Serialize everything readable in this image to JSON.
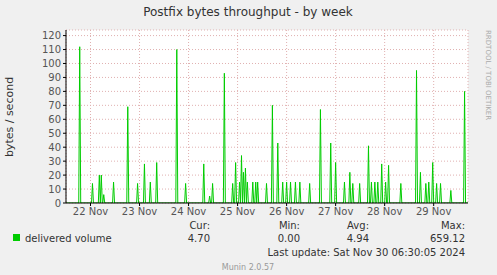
{
  "chart_data": {
    "type": "line",
    "title": "Postfix bytes throughput - by week",
    "y_label": "bytes / second",
    "x": [
      22.0,
      22.26,
      22.28,
      22.3,
      22.52,
      22.54,
      22.56,
      22.66,
      22.68,
      22.7,
      22.72,
      22.74,
      22.75,
      22.77,
      22.79,
      22.95,
      22.97,
      22.99,
      23.24,
      23.26,
      23.28,
      23.44,
      23.46,
      23.48,
      23.58,
      23.6,
      23.62,
      23.7,
      23.72,
      23.74,
      23.83,
      23.85,
      23.87,
      24.24,
      24.26,
      24.28,
      24.42,
      24.44,
      24.46,
      24.79,
      24.81,
      24.83,
      24.91,
      24.93,
      24.95,
      24.97,
      24.99,
      25.01,
      25.21,
      25.23,
      25.25,
      25.38,
      25.4,
      25.42,
      25.44,
      25.46,
      25.48,
      25.52,
      25.54,
      25.56,
      25.58,
      25.6,
      25.62,
      25.64,
      25.66,
      25.68,
      25.7,
      25.72,
      25.79,
      25.81,
      25.83,
      25.85,
      25.87,
      25.89,
      25.91,
      25.93,
      26.07,
      26.09,
      26.11,
      26.19,
      26.21,
      26.23,
      26.3,
      26.32,
      26.34,
      26.4,
      26.42,
      26.44,
      26.48,
      26.5,
      26.52,
      26.56,
      26.58,
      26.6,
      26.66,
      26.68,
      26.7,
      26.75,
      26.77,
      26.79,
      26.95,
      26.97,
      26.99,
      27.17,
      27.19,
      27.21,
      27.38,
      27.4,
      27.42,
      27.48,
      27.5,
      27.52,
      27.66,
      27.68,
      27.7,
      27.77,
      27.79,
      27.81,
      27.83,
      27.85,
      27.87,
      27.97,
      27.99,
      28.01,
      28.15,
      28.17,
      28.19,
      28.21,
      28.23,
      28.25,
      28.28,
      28.3,
      28.32,
      28.34,
      28.36,
      28.38,
      28.42,
      28.44,
      28.46,
      28.5,
      28.52,
      28.54,
      28.56,
      28.58,
      28.6,
      28.81,
      28.83,
      28.85,
      29.13,
      29.15,
      29.17,
      29.21,
      29.23,
      29.25,
      29.32,
      29.34,
      29.36,
      29.38,
      29.4,
      29.42,
      29.46,
      29.48,
      29.5,
      29.54,
      29.56,
      29.58,
      29.62,
      29.64,
      29.66,
      29.83,
      29.85,
      29.87,
      30.11,
      30.13,
      30.15,
      30.2
    ],
    "series": [
      {
        "name": "delivered volume",
        "color": "#00cc00",
        "values": [
          0,
          0,
          112,
          0,
          0,
          14,
          0,
          0,
          20,
          0,
          20,
          0,
          0,
          6,
          0,
          0,
          15,
          0,
          0,
          69,
          0,
          0,
          14,
          0,
          0,
          28,
          0,
          0,
          15,
          0,
          0,
          29,
          0,
          0,
          110,
          0,
          0,
          14,
          0,
          0,
          28,
          0,
          0,
          5,
          0,
          0,
          14,
          0,
          0,
          93,
          0,
          0,
          14,
          0,
          0,
          29,
          0,
          0,
          15,
          0,
          34,
          0,
          22,
          0,
          25,
          0,
          15,
          0,
          0,
          15,
          0,
          0,
          15,
          0,
          15,
          0,
          0,
          14,
          0,
          0,
          70,
          0,
          0,
          43,
          0,
          0,
          15,
          0,
          0,
          15,
          0,
          0,
          15,
          0,
          0,
          15,
          0,
          0,
          15,
          0,
          0,
          14,
          0,
          0,
          67,
          0,
          0,
          43,
          0,
          0,
          29,
          0,
          0,
          15,
          0,
          0,
          22,
          0,
          0,
          14,
          0,
          0,
          14,
          0,
          0,
          41,
          0,
          0,
          15,
          0,
          0,
          15,
          0,
          0,
          15,
          0,
          0,
          28,
          0,
          0,
          15,
          0,
          0,
          27,
          0,
          0,
          14,
          0,
          0,
          95,
          0,
          0,
          22,
          0,
          0,
          14,
          0,
          0,
          15,
          0,
          0,
          29,
          0,
          0,
          14,
          0,
          0,
          14,
          0,
          0,
          9,
          0,
          0,
          80,
          0,
          0
        ]
      }
    ],
    "xlim": [
      22.0,
      30.2
    ],
    "xticks": [
      {
        "value": 22.5,
        "label": "22 Nov"
      },
      {
        "value": 23.5,
        "label": "23 Nov"
      },
      {
        "value": 24.5,
        "label": "24 Nov"
      },
      {
        "value": 25.5,
        "label": "25 Nov"
      },
      {
        "value": 26.5,
        "label": "26 Nov"
      },
      {
        "value": 27.5,
        "label": "27 Nov"
      },
      {
        "value": 28.5,
        "label": "28 Nov"
      },
      {
        "value": 29.5,
        "label": "29 Nov"
      }
    ],
    "ylim": [
      0,
      124
    ],
    "yticks": [
      0,
      10,
      20,
      30,
      40,
      50,
      60,
      70,
      80,
      90,
      100,
      110,
      120
    ],
    "grid": true,
    "summary": {
      "labels": [
        "Cur:",
        "Min:",
        "Avg:",
        "Max:"
      ],
      "values": [
        4.7,
        0,
        4.94,
        659.12
      ],
      "value_labels": [
        "4.70",
        "0.00",
        "4.94",
        "659.12"
      ]
    },
    "last_update": "Last update: Sat Nov 30 06:30:05 2024",
    "software": "Munin 2.0.57",
    "watermark": "RRDTOOL / TOBI OETIKER"
  }
}
